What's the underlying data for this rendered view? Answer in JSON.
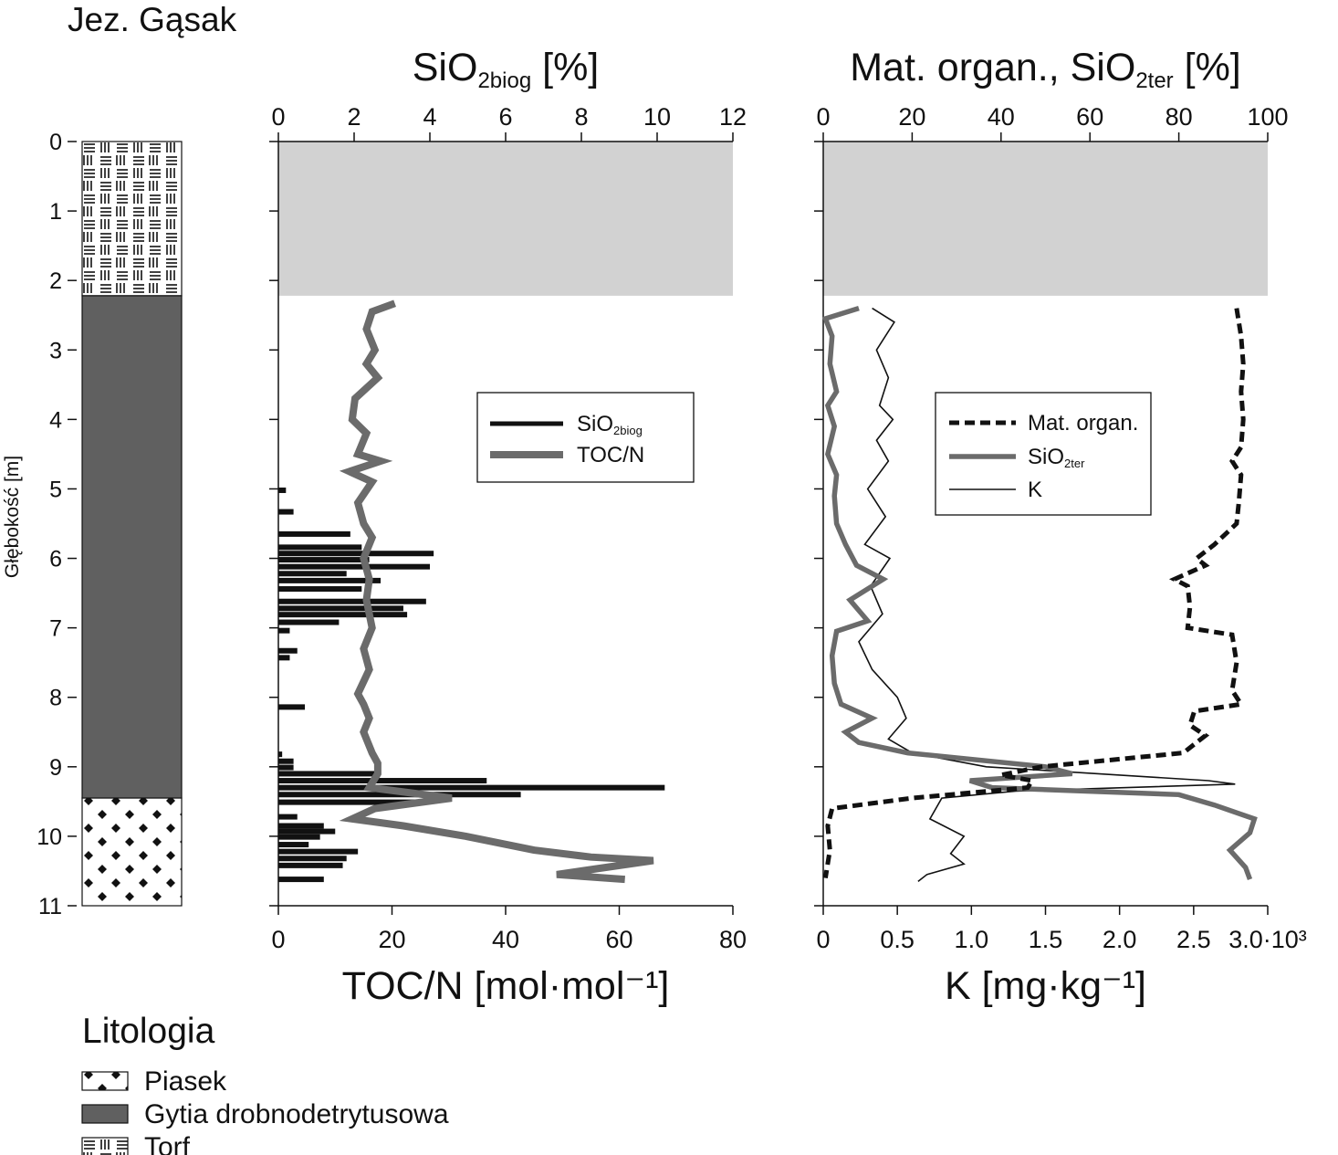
{
  "figure": {
    "title": "Jez. Gąsak",
    "ylabel": "Głębokość [m]",
    "depth_ticks": [
      "0",
      "1",
      "2",
      "3",
      "4",
      "5",
      "6",
      "7",
      "8",
      "9",
      "10",
      "11"
    ]
  },
  "lithology_column": {
    "units": [
      {
        "name": "Torf",
        "from": 0,
        "to": 2.22
      },
      {
        "name": "Gytia drobnodetrytusowa",
        "from": 2.22,
        "to": 9.45
      },
      {
        "name": "Piasek",
        "from": 9.45,
        "to": 11.0
      }
    ]
  },
  "legend_lithology": {
    "title": "Litologia",
    "items": [
      {
        "key": "piasek",
        "label": "Piasek"
      },
      {
        "key": "gytia",
        "label": "Gytia drobnodetrytusowa"
      },
      {
        "key": "torf",
        "label": "Torf"
      }
    ]
  },
  "chart_data": [
    {
      "type": "bar",
      "orientation": "horizontal",
      "panel": "SiO2biog / TOC/N",
      "top_axis": {
        "label_main": "SiO",
        "label_sub": "2biog",
        "label_tail": " [%]",
        "range": [
          0,
          12
        ],
        "ticks": [
          "0",
          "2",
          "4",
          "6",
          "8",
          "10",
          "12"
        ]
      },
      "bottom_axis": {
        "label": "TOC/N [mol·mol⁻¹]",
        "range": [
          0,
          80
        ],
        "ticks": [
          "0",
          "20",
          "40",
          "60",
          "80"
        ]
      },
      "yaxis": {
        "range": [
          0,
          11
        ],
        "inverted": true
      },
      "no_data_band": {
        "from": 0,
        "to": 2.22,
        "color": "#d2d2d2"
      },
      "legend": [
        {
          "label_main": "SiO",
          "label_sub": "2biog",
          "style": "bar",
          "color": "#111111"
        },
        {
          "label_main": "TOC/N",
          "label_sub": "",
          "style": "thick-line",
          "color": "#6b6b6b"
        }
      ],
      "series": [
        {
          "name_main": "SiO",
          "name_sub": "2biog",
          "axis": "top",
          "color": "#111111",
          "points": [
            {
              "depth": 5.02,
              "value": 0.2
            },
            {
              "depth": 5.33,
              "value": 0.4
            },
            {
              "depth": 5.65,
              "value": 1.9
            },
            {
              "depth": 5.84,
              "value": 2.2
            },
            {
              "depth": 5.93,
              "value": 4.1
            },
            {
              "depth": 6.02,
              "value": 2.4
            },
            {
              "depth": 6.12,
              "value": 4.0
            },
            {
              "depth": 6.22,
              "value": 1.8
            },
            {
              "depth": 6.32,
              "value": 2.7
            },
            {
              "depth": 6.44,
              "value": 2.2
            },
            {
              "depth": 6.62,
              "value": 3.9
            },
            {
              "depth": 6.72,
              "value": 3.3
            },
            {
              "depth": 6.81,
              "value": 3.4
            },
            {
              "depth": 6.92,
              "value": 1.6
            },
            {
              "depth": 7.04,
              "value": 0.3
            },
            {
              "depth": 7.33,
              "value": 0.5
            },
            {
              "depth": 7.43,
              "value": 0.3
            },
            {
              "depth": 8.14,
              "value": 0.7
            },
            {
              "depth": 8.82,
              "value": 0.1
            },
            {
              "depth": 8.92,
              "value": 0.4
            },
            {
              "depth": 9.01,
              "value": 0.4
            },
            {
              "depth": 9.1,
              "value": 2.6
            },
            {
              "depth": 9.2,
              "value": 5.5
            },
            {
              "depth": 9.3,
              "value": 10.2
            },
            {
              "depth": 9.4,
              "value": 6.4
            },
            {
              "depth": 9.51,
              "value": 3.7
            },
            {
              "depth": 9.72,
              "value": 0.5
            },
            {
              "depth": 9.85,
              "value": 1.2
            },
            {
              "depth": 9.93,
              "value": 1.5
            },
            {
              "depth": 10.01,
              "value": 1.1
            },
            {
              "depth": 10.12,
              "value": 0.8
            },
            {
              "depth": 10.22,
              "value": 2.1
            },
            {
              "depth": 10.32,
              "value": 1.8
            },
            {
              "depth": 10.42,
              "value": 1.7
            },
            {
              "depth": 10.62,
              "value": 1.2
            }
          ]
        },
        {
          "name_main": "TOC/N",
          "name_sub": "",
          "axis": "bottom",
          "color": "#6b6b6b",
          "points": [
            {
              "depth": 2.33,
              "value": 20.5
            },
            {
              "depth": 2.45,
              "value": 16.5
            },
            {
              "depth": 2.7,
              "value": 15.5
            },
            {
              "depth": 3.0,
              "value": 17.0
            },
            {
              "depth": 3.2,
              "value": 15.5
            },
            {
              "depth": 3.4,
              "value": 17.5
            },
            {
              "depth": 3.7,
              "value": 13.5
            },
            {
              "depth": 4.0,
              "value": 13.0
            },
            {
              "depth": 4.2,
              "value": 15.5
            },
            {
              "depth": 4.5,
              "value": 14.0
            },
            {
              "depth": 4.6,
              "value": 18.0
            },
            {
              "depth": 4.75,
              "value": 12.5
            },
            {
              "depth": 4.9,
              "value": 16.5
            },
            {
              "depth": 5.2,
              "value": 14.0
            },
            {
              "depth": 5.5,
              "value": 15.0
            },
            {
              "depth": 5.7,
              "value": 16.5
            },
            {
              "depth": 6.0,
              "value": 15.0
            },
            {
              "depth": 6.3,
              "value": 16.0
            },
            {
              "depth": 6.6,
              "value": 15.5
            },
            {
              "depth": 7.0,
              "value": 16.5
            },
            {
              "depth": 7.3,
              "value": 15.0
            },
            {
              "depth": 7.6,
              "value": 16.0
            },
            {
              "depth": 7.95,
              "value": 14.0
            },
            {
              "depth": 8.1,
              "value": 15.0
            },
            {
              "depth": 8.3,
              "value": 16.0
            },
            {
              "depth": 8.5,
              "value": 15.0
            },
            {
              "depth": 8.8,
              "value": 16.5
            },
            {
              "depth": 8.95,
              "value": 17.5
            },
            {
              "depth": 9.1,
              "value": 17.5
            },
            {
              "depth": 9.3,
              "value": 16.0
            },
            {
              "depth": 9.45,
              "value": 30.5
            },
            {
              "depth": 9.6,
              "value": 17.0
            },
            {
              "depth": 9.75,
              "value": 13.0
            },
            {
              "depth": 9.85,
              "value": 22.0
            },
            {
              "depth": 10.0,
              "value": 33.0
            },
            {
              "depth": 10.2,
              "value": 45.0
            },
            {
              "depth": 10.3,
              "value": 55.0
            },
            {
              "depth": 10.35,
              "value": 66.0
            },
            {
              "depth": 10.55,
              "value": 49.0
            },
            {
              "depth": 10.62,
              "value": 61.0
            }
          ]
        }
      ]
    },
    {
      "type": "line",
      "orientation": "vertical-profile",
      "panel": "Mat. organ., SiO2ter, K",
      "top_axis": {
        "label_main": "Mat. organ., SiO",
        "label_sub": "2ter",
        "label_tail": " [%]",
        "range": [
          0,
          100
        ],
        "ticks": [
          "0",
          "20",
          "40",
          "60",
          "80",
          "100"
        ]
      },
      "bottom_axis": {
        "label": "K [mg·kg⁻¹]",
        "range": [
          0,
          3000
        ],
        "ticks": [
          "0",
          "0.5",
          "1.0",
          "1.5",
          "2.0",
          "2.5",
          "3.0·10³"
        ]
      },
      "yaxis": {
        "range": [
          0,
          11
        ],
        "inverted": true
      },
      "no_data_band": {
        "from": 0,
        "to": 2.22,
        "color": "#d2d2d2"
      },
      "legend": [
        {
          "label_main": "Mat. organ.",
          "label_sub": "",
          "style": "dashed-thick",
          "color": "#111111"
        },
        {
          "label_main": "SiO",
          "label_sub": "2ter",
          "style": "thick-line",
          "color": "#6b6b6b"
        },
        {
          "label_main": "K",
          "label_sub": "",
          "style": "thin-line",
          "color": "#111111"
        }
      ],
      "series": [
        {
          "name_main": "Mat. organ.",
          "name_sub": "",
          "axis": "top",
          "color": "#111111",
          "points": [
            {
              "depth": 2.4,
              "value": 93.0
            },
            {
              "depth": 2.8,
              "value": 94.0
            },
            {
              "depth": 3.2,
              "value": 94.5
            },
            {
              "depth": 3.6,
              "value": 94.0
            },
            {
              "depth": 4.0,
              "value": 94.5
            },
            {
              "depth": 4.4,
              "value": 94.0
            },
            {
              "depth": 4.6,
              "value": 92.0
            },
            {
              "depth": 4.8,
              "value": 94.0
            },
            {
              "depth": 5.2,
              "value": 93.5
            },
            {
              "depth": 5.5,
              "value": 93.0
            },
            {
              "depth": 5.8,
              "value": 88.0
            },
            {
              "depth": 6.0,
              "value": 84.0
            },
            {
              "depth": 6.1,
              "value": 86.0
            },
            {
              "depth": 6.3,
              "value": 79.0
            },
            {
              "depth": 6.4,
              "value": 82.0
            },
            {
              "depth": 6.7,
              "value": 82.5
            },
            {
              "depth": 7.0,
              "value": 82.0
            },
            {
              "depth": 7.1,
              "value": 92.0
            },
            {
              "depth": 7.5,
              "value": 93.0
            },
            {
              "depth": 7.9,
              "value": 92.0
            },
            {
              "depth": 8.1,
              "value": 94.0
            },
            {
              "depth": 8.2,
              "value": 83.5
            },
            {
              "depth": 8.4,
              "value": 82.5
            },
            {
              "depth": 8.55,
              "value": 86.0
            },
            {
              "depth": 8.7,
              "value": 83.0
            },
            {
              "depth": 8.8,
              "value": 81.0
            },
            {
              "depth": 9.0,
              "value": 49.0
            },
            {
              "depth": 9.12,
              "value": 40.0
            },
            {
              "depth": 9.2,
              "value": 47.0
            },
            {
              "depth": 9.3,
              "value": 46.0
            },
            {
              "depth": 9.45,
              "value": 20.0
            },
            {
              "depth": 9.6,
              "value": 2.0
            },
            {
              "depth": 9.85,
              "value": 1.0
            },
            {
              "depth": 10.2,
              "value": 1.5
            },
            {
              "depth": 10.6,
              "value": 0.5
            }
          ]
        },
        {
          "name_main": "SiO",
          "name_sub": "2ter",
          "axis": "top",
          "color": "#6b6b6b",
          "points": [
            {
              "depth": 2.4,
              "value": 8.0
            },
            {
              "depth": 2.55,
              "value": 0.5
            },
            {
              "depth": 2.8,
              "value": 2.0
            },
            {
              "depth": 3.2,
              "value": 1.5
            },
            {
              "depth": 3.6,
              "value": 3.0
            },
            {
              "depth": 3.8,
              "value": 1.0
            },
            {
              "depth": 4.1,
              "value": 2.5
            },
            {
              "depth": 4.5,
              "value": 1.0
            },
            {
              "depth": 4.8,
              "value": 3.0
            },
            {
              "depth": 5.1,
              "value": 2.5
            },
            {
              "depth": 5.5,
              "value": 3.0
            },
            {
              "depth": 5.8,
              "value": 5.0
            },
            {
              "depth": 6.1,
              "value": 7.5
            },
            {
              "depth": 6.3,
              "value": 13.5
            },
            {
              "depth": 6.6,
              "value": 6.0
            },
            {
              "depth": 6.9,
              "value": 10.0
            },
            {
              "depth": 7.05,
              "value": 3.0
            },
            {
              "depth": 7.4,
              "value": 2.0
            },
            {
              "depth": 7.8,
              "value": 2.5
            },
            {
              "depth": 8.1,
              "value": 4.0
            },
            {
              "depth": 8.3,
              "value": 11.0
            },
            {
              "depth": 8.5,
              "value": 5.0
            },
            {
              "depth": 8.65,
              "value": 8.0
            },
            {
              "depth": 8.8,
              "value": 19.0
            },
            {
              "depth": 9.0,
              "value": 50.0
            },
            {
              "depth": 9.1,
              "value": 56.0
            },
            {
              "depth": 9.2,
              "value": 33.0
            },
            {
              "depth": 9.3,
              "value": 38.0
            },
            {
              "depth": 9.4,
              "value": 80.0
            },
            {
              "depth": 9.55,
              "value": 88.0
            },
            {
              "depth": 9.75,
              "value": 97.0
            },
            {
              "depth": 9.95,
              "value": 96.0
            },
            {
              "depth": 10.2,
              "value": 91.5
            },
            {
              "depth": 10.45,
              "value": 95.0
            },
            {
              "depth": 10.62,
              "value": 96.0
            }
          ]
        },
        {
          "name_main": "K",
          "name_sub": "",
          "axis": "bottom",
          "color": "#111111",
          "points": [
            {
              "depth": 2.4,
              "value": 330
            },
            {
              "depth": 2.6,
              "value": 480
            },
            {
              "depth": 3.0,
              "value": 360
            },
            {
              "depth": 3.4,
              "value": 440
            },
            {
              "depth": 3.8,
              "value": 380
            },
            {
              "depth": 4.0,
              "value": 470
            },
            {
              "depth": 4.3,
              "value": 360
            },
            {
              "depth": 4.6,
              "value": 440
            },
            {
              "depth": 5.0,
              "value": 300
            },
            {
              "depth": 5.4,
              "value": 420
            },
            {
              "depth": 5.8,
              "value": 280
            },
            {
              "depth": 6.0,
              "value": 450
            },
            {
              "depth": 6.4,
              "value": 320
            },
            {
              "depth": 6.8,
              "value": 400
            },
            {
              "depth": 7.2,
              "value": 240
            },
            {
              "depth": 7.6,
              "value": 330
            },
            {
              "depth": 8.0,
              "value": 500
            },
            {
              "depth": 8.3,
              "value": 560
            },
            {
              "depth": 8.6,
              "value": 440
            },
            {
              "depth": 8.8,
              "value": 600
            },
            {
              "depth": 9.0,
              "value": 1100
            },
            {
              "depth": 9.2,
              "value": 2600
            },
            {
              "depth": 9.25,
              "value": 2780
            },
            {
              "depth": 9.35,
              "value": 1300
            },
            {
              "depth": 9.45,
              "value": 800
            },
            {
              "depth": 9.75,
              "value": 720
            },
            {
              "depth": 10.0,
              "value": 950
            },
            {
              "depth": 10.25,
              "value": 860
            },
            {
              "depth": 10.4,
              "value": 950
            },
            {
              "depth": 10.55,
              "value": 700
            },
            {
              "depth": 10.65,
              "value": 640
            }
          ]
        }
      ]
    }
  ]
}
